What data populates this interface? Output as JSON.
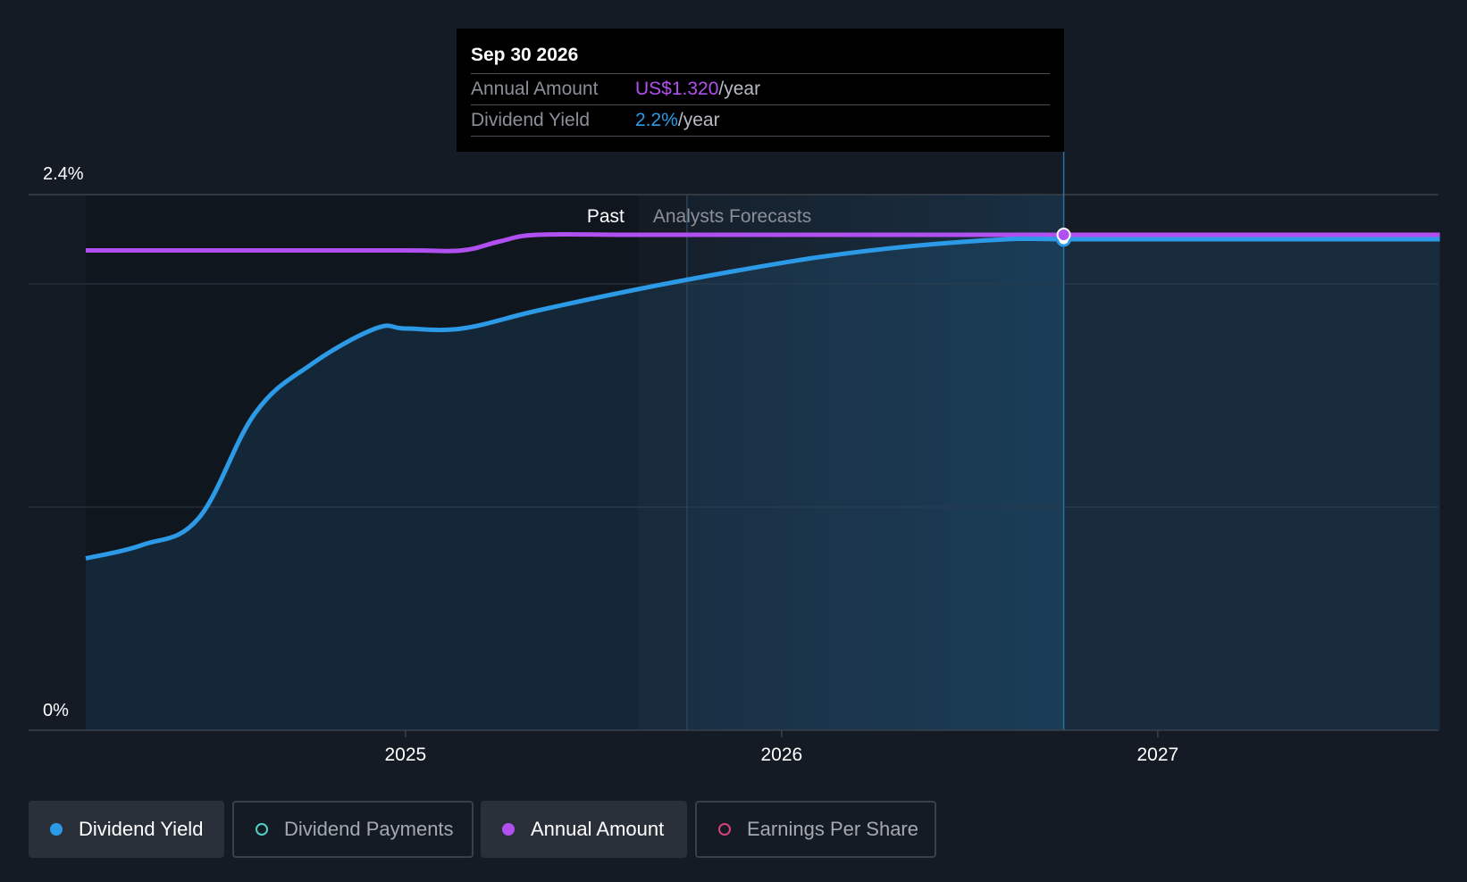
{
  "colors": {
    "background": "#151b24",
    "yield": "#2c9ae6",
    "annual": "#b150f0",
    "payments": "#4fd1c5",
    "eps": "#d6437a"
  },
  "tooltip": {
    "date": "Sep 30 2026",
    "rows": [
      {
        "label": "Annual Amount",
        "value": "US$1.320",
        "unit": "/year"
      },
      {
        "label": "Dividend Yield",
        "value": "2.2%",
        "unit": "/year"
      }
    ]
  },
  "sections": {
    "past": "Past",
    "forecast": "Analysts Forecasts"
  },
  "legend": [
    {
      "label": "Dividend Yield",
      "icon": "filled-dot-icon",
      "color": "#2c9ae6",
      "active": true
    },
    {
      "label": "Dividend Payments",
      "icon": "hollow-dot-icon",
      "color": "#4fd1c5",
      "active": false
    },
    {
      "label": "Annual Amount",
      "icon": "filled-dot-icon",
      "color": "#b150f0",
      "active": true
    },
    {
      "label": "Earnings Per Share",
      "icon": "hollow-dot-icon",
      "color": "#d6437a",
      "active": false
    }
  ],
  "chart_data": {
    "type": "area",
    "y_tick_labels": [
      "0%",
      "2.4%"
    ],
    "ylim": [
      0,
      2.4
    ],
    "x_tick_labels": [
      "2025",
      "2026",
      "2027"
    ],
    "x_ticks": [
      2025.0,
      2026.0,
      2027.0
    ],
    "xlim": [
      2024.0,
      2027.75
    ],
    "past_forecast_boundary": 2025.62,
    "tooltip_x": 2026.75,
    "grid": true,
    "series": [
      {
        "name": "Dividend Yield",
        "kind": "area",
        "x": [
          2024.15,
          2024.3,
          2024.45,
          2024.6,
          2024.75,
          2024.92,
          2025.0,
          2025.15,
          2025.35,
          2025.6,
          2025.85,
          2026.1,
          2026.35,
          2026.6,
          2026.75,
          2027.0,
          2027.75
        ],
        "y": [
          0.77,
          0.83,
          0.95,
          1.42,
          1.64,
          1.8,
          1.8,
          1.8,
          1.88,
          1.97,
          2.05,
          2.12,
          2.17,
          2.2,
          2.2,
          2.2,
          2.2
        ]
      },
      {
        "name": "Annual Amount",
        "kind": "line",
        "x": [
          2024.15,
          2024.5,
          2025.0,
          2025.15,
          2025.25,
          2025.35,
          2025.6,
          2026.0,
          2026.75,
          2027.75
        ],
        "y": [
          2.15,
          2.15,
          2.15,
          2.15,
          2.19,
          2.22,
          2.22,
          2.22,
          2.22,
          2.22
        ]
      }
    ]
  }
}
